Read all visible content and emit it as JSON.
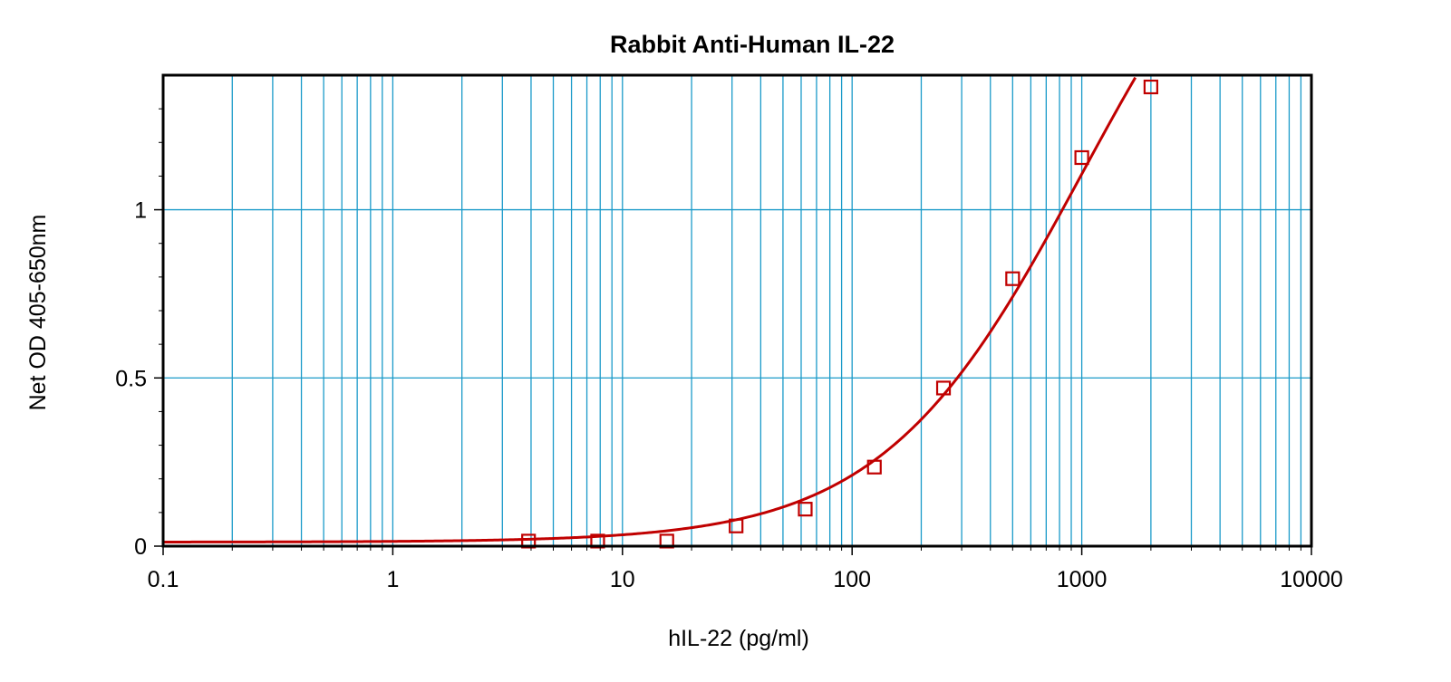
{
  "chart_data": {
    "type": "scatter",
    "title": "Rabbit Anti-Human IL-22",
    "xlabel": "hIL-22 (pg/ml)",
    "ylabel": "Net OD 405-650nm",
    "x_scale": "log",
    "xlim": [
      0.1,
      10000
    ],
    "ylim": [
      0,
      1.4
    ],
    "x_ticks": [
      {
        "value": 0.1,
        "label": "0.1"
      },
      {
        "value": 1,
        "label": "1"
      },
      {
        "value": 10,
        "label": "10"
      },
      {
        "value": 100,
        "label": "100"
      },
      {
        "value": 1000,
        "label": "1000"
      },
      {
        "value": 10000,
        "label": "10000"
      }
    ],
    "y_ticks": [
      {
        "value": 0,
        "label": "0"
      },
      {
        "value": 0.5,
        "label": "0.5"
      },
      {
        "value": 1,
        "label": "1"
      }
    ],
    "grid": true,
    "legend": "none",
    "colors": {
      "series": "#c00000",
      "grid": "#1a9ac9",
      "frame": "#000000"
    },
    "series": [
      {
        "marker": "square-open",
        "fit": "4PL",
        "points": [
          {
            "x": 3.9,
            "y": 0.015
          },
          {
            "x": 7.8,
            "y": 0.015
          },
          {
            "x": 15.6,
            "y": 0.015
          },
          {
            "x": 31.25,
            "y": 0.06
          },
          {
            "x": 62.5,
            "y": 0.11
          },
          {
            "x": 125,
            "y": 0.235
          },
          {
            "x": 250,
            "y": 0.47
          },
          {
            "x": 500,
            "y": 0.795
          },
          {
            "x": 1000,
            "y": 1.155
          },
          {
            "x": 2000,
            "y": 1.365
          }
        ],
        "curve_fit": {
          "bottom": 0.012,
          "top": 2.2,
          "ec50": 1000,
          "hill": 1.0
        }
      }
    ]
  }
}
